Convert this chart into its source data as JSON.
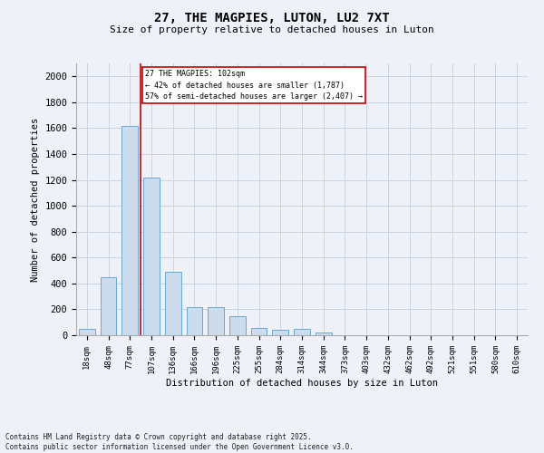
{
  "title": "27, THE MAGPIES, LUTON, LU2 7XT",
  "subtitle": "Size of property relative to detached houses in Luton",
  "xlabel": "Distribution of detached houses by size in Luton",
  "ylabel": "Number of detached properties",
  "categories": [
    "18sqm",
    "48sqm",
    "77sqm",
    "107sqm",
    "136sqm",
    "166sqm",
    "196sqm",
    "225sqm",
    "255sqm",
    "284sqm",
    "314sqm",
    "344sqm",
    "373sqm",
    "403sqm",
    "432sqm",
    "462sqm",
    "492sqm",
    "521sqm",
    "551sqm",
    "580sqm",
    "610sqm"
  ],
  "values": [
    50,
    450,
    1620,
    1220,
    490,
    215,
    215,
    150,
    55,
    45,
    50,
    20,
    0,
    0,
    0,
    0,
    0,
    0,
    0,
    0,
    0
  ],
  "bar_color": "#ccdcec",
  "bar_edge_color": "#6aaad4",
  "redline_color": "#cc0000",
  "annotation_line1": "27 THE MAGPIES: 102sqm",
  "annotation_line2": "← 42% of detached houses are smaller (1,787)",
  "annotation_line3": "57% of semi-detached houses are larger (2,407) →",
  "annotation_box_color": "#ffffff",
  "annotation_box_edge_color": "#cc0000",
  "grid_color": "#c8d4e4",
  "ylim": [
    0,
    2100
  ],
  "yticks": [
    0,
    200,
    400,
    600,
    800,
    1000,
    1200,
    1400,
    1600,
    1800,
    2000
  ],
  "footer_line1": "Contains HM Land Registry data © Crown copyright and database right 2025.",
  "footer_line2": "Contains public sector information licensed under the Open Government Licence v3.0.",
  "bg_color": "#eef2f8"
}
